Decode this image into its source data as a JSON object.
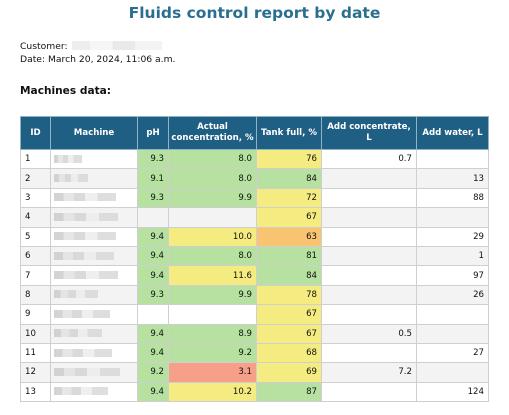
{
  "title": "Fluids control report by date",
  "customer_label": "Customer:",
  "date_label": "Date: March 20, 2024, 11:06 a.m.",
  "section_title": "Machines data:",
  "columns": [
    "ID",
    "Machine",
    "pH",
    "Actual concentration, %",
    "Tank full, %",
    "Add concentrate, L",
    "Add water, L"
  ],
  "status_colors": {
    "green": "#b7e1a1",
    "yellow": "#f4ec80",
    "orange": "#f8c472",
    "red": "#f6a08a",
    "header": "#1f5f83"
  },
  "rows": [
    {
      "id": "1",
      "ph": "9.3",
      "ph_s": "green",
      "conc": "8.0",
      "conc_s": "green",
      "tank": "76",
      "tank_s": "yellow",
      "add_conc": "0.7",
      "add_water": ""
    },
    {
      "id": "2",
      "ph": "9.1",
      "ph_s": "green",
      "conc": "8.0",
      "conc_s": "green",
      "tank": "84",
      "tank_s": "green",
      "add_conc": "",
      "add_water": "13"
    },
    {
      "id": "3",
      "ph": "9.3",
      "ph_s": "green",
      "conc": "9.9",
      "conc_s": "green",
      "tank": "72",
      "tank_s": "yellow",
      "add_conc": "",
      "add_water": "88"
    },
    {
      "id": "4",
      "ph": "",
      "ph_s": "",
      "conc": "",
      "conc_s": "",
      "tank": "67",
      "tank_s": "yellow",
      "add_conc": "",
      "add_water": ""
    },
    {
      "id": "5",
      "ph": "9.4",
      "ph_s": "green",
      "conc": "10.0",
      "conc_s": "yellow",
      "tank": "63",
      "tank_s": "orange",
      "add_conc": "",
      "add_water": "29"
    },
    {
      "id": "6",
      "ph": "9.4",
      "ph_s": "green",
      "conc": "8.0",
      "conc_s": "green",
      "tank": "81",
      "tank_s": "green",
      "add_conc": "",
      "add_water": "1"
    },
    {
      "id": "7",
      "ph": "9.4",
      "ph_s": "green",
      "conc": "11.6",
      "conc_s": "yellow",
      "tank": "84",
      "tank_s": "green",
      "add_conc": "",
      "add_water": "97"
    },
    {
      "id": "8",
      "ph": "9.3",
      "ph_s": "green",
      "conc": "9.9",
      "conc_s": "green",
      "tank": "78",
      "tank_s": "yellow",
      "add_conc": "",
      "add_water": "26"
    },
    {
      "id": "9",
      "ph": "",
      "ph_s": "",
      "conc": "",
      "conc_s": "",
      "tank": "67",
      "tank_s": "yellow",
      "add_conc": "",
      "add_water": ""
    },
    {
      "id": "10",
      "ph": "9.4",
      "ph_s": "green",
      "conc": "8.9",
      "conc_s": "green",
      "tank": "67",
      "tank_s": "yellow",
      "add_conc": "0.5",
      "add_water": ""
    },
    {
      "id": "11",
      "ph": "9.4",
      "ph_s": "green",
      "conc": "9.2",
      "conc_s": "green",
      "tank": "68",
      "tank_s": "yellow",
      "add_conc": "",
      "add_water": "27"
    },
    {
      "id": "12",
      "ph": "9.2",
      "ph_s": "green",
      "conc": "3.1",
      "conc_s": "red",
      "tank": "69",
      "tank_s": "yellow",
      "add_conc": "7.2",
      "add_water": ""
    },
    {
      "id": "13",
      "ph": "9.4",
      "ph_s": "green",
      "conc": "10.2",
      "conc_s": "yellow",
      "tank": "87",
      "tank_s": "green",
      "add_conc": "",
      "add_water": "124"
    }
  ]
}
